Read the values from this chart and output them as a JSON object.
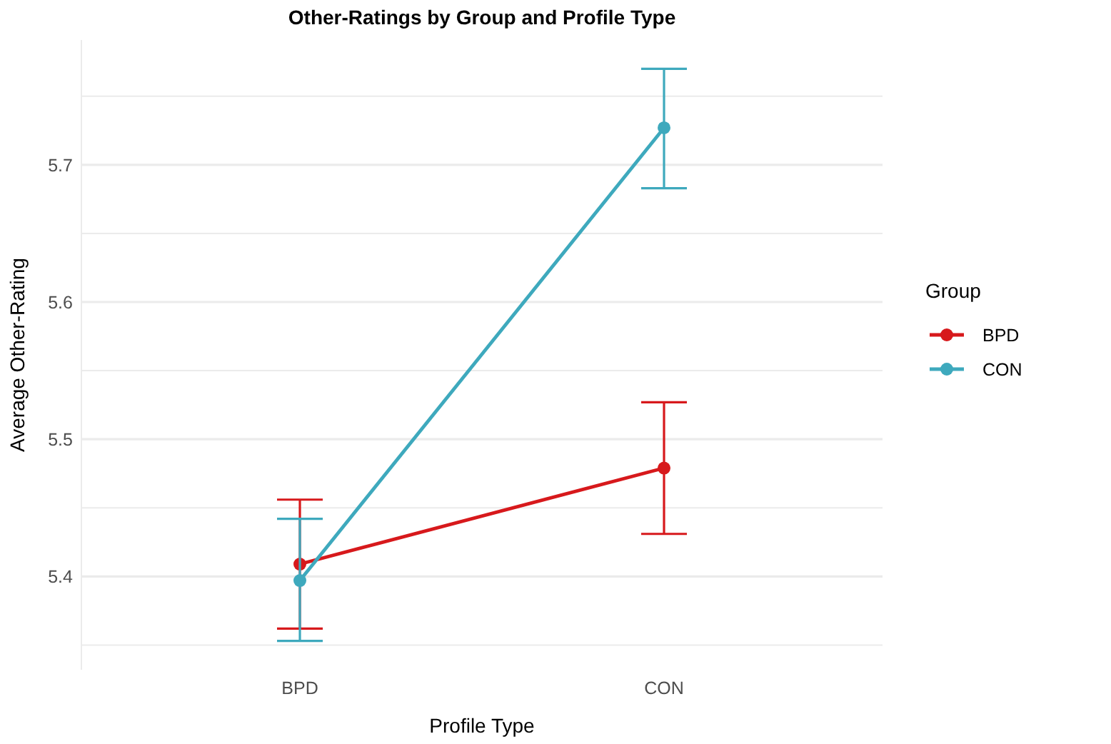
{
  "chart_data": {
    "type": "line",
    "title": "Other-Ratings by Group and Profile Type",
    "xlabel": "Profile Type",
    "ylabel": "Average Other-Rating",
    "legend_title": "Group",
    "categories": [
      "BPD",
      "CON"
    ],
    "series": [
      {
        "name": "BPD",
        "color": "#d7191c",
        "values": [
          5.409,
          5.479
        ],
        "errors": [
          [
            5.362,
            5.456
          ],
          [
            5.431,
            5.527
          ]
        ]
      },
      {
        "name": "CON",
        "color": "#3ea9bd",
        "values": [
          5.397,
          5.727
        ],
        "errors": [
          [
            5.353,
            5.442
          ],
          [
            5.683,
            5.77
          ]
        ]
      }
    ],
    "ylim": [
      5.332,
      5.791
    ],
    "yticks": [
      {
        "value": 5.35,
        "label": null
      },
      5.4,
      {
        "value": 5.45,
        "label": null
      },
      5.5,
      {
        "value": 5.55,
        "label": null
      },
      5.6,
      {
        "value": 5.65,
        "label": null
      },
      5.7,
      {
        "value": 5.75,
        "label": null
      }
    ],
    "grid": "y",
    "legend": "right",
    "marker": "circle",
    "line_style": "solid"
  }
}
